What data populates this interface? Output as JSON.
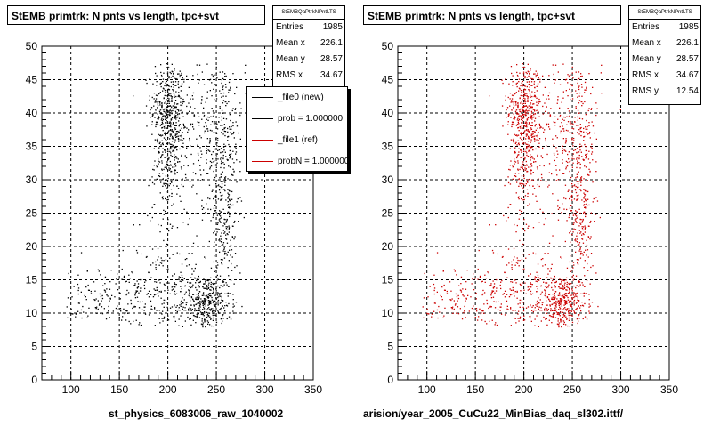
{
  "chart_data": [
    {
      "type": "scatter",
      "title": "StEMB primtrk: N pnts vs length, tpc+svt",
      "xlabel": "st_physics_6083006_raw_1040002",
      "ylabel": "",
      "xlim": [
        70,
        350
      ],
      "ylim": [
        0,
        50
      ],
      "xticks": [
        100,
        150,
        200,
        250,
        300,
        350
      ],
      "yticks": [
        0,
        5,
        10,
        15,
        20,
        25,
        30,
        35,
        40,
        45,
        50
      ],
      "grid": true,
      "color": "#000000",
      "stats_name": "StEMBQaPtrkNPntLTS",
      "stats": [
        {
          "label": "Entries",
          "value": "1985"
        },
        {
          "label": "Mean x",
          "value": "226.1"
        },
        {
          "label": "Mean y",
          "value": "28.57"
        },
        {
          "label": "RMS x",
          "value": "34.67"
        }
      ],
      "legend": [
        {
          "text": "_file0 (new)",
          "color": "#000000"
        },
        {
          "text": "prob = 1.000000",
          "color": "#000000"
        },
        {
          "text": "_file1 (ref)",
          "color": "#cc0000"
        },
        {
          "text": "probN = 1.000000",
          "color": "#cc0000"
        }
      ]
    },
    {
      "type": "scatter",
      "title": "StEMB primtrk: N pnts vs length, tpc+svt",
      "xlabel": "arision/year_2005_CuCu22_MinBias_daq_sl302.ittf/",
      "ylabel": "",
      "xlim": [
        70,
        350
      ],
      "ylim": [
        0,
        50
      ],
      "xticks": [
        100,
        150,
        200,
        250,
        300,
        350
      ],
      "yticks": [
        0,
        5,
        10,
        15,
        20,
        25,
        30,
        35,
        40,
        45,
        50
      ],
      "grid": true,
      "color": "#cc0000",
      "stats_name": "StEMBQaPtrkNPntLTS",
      "stats": [
        {
          "label": "Entries",
          "value": "1985"
        },
        {
          "label": "Mean x",
          "value": "226.1"
        },
        {
          "label": "Mean y",
          "value": "28.57"
        },
        {
          "label": "RMS x",
          "value": "34.67"
        },
        {
          "label": "RMS y",
          "value": "12.54"
        }
      ]
    }
  ]
}
